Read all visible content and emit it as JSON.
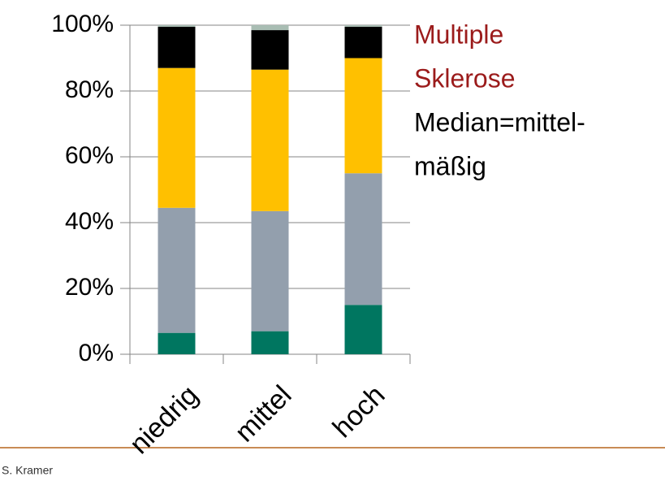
{
  "chart_data": {
    "type": "stacked_bar",
    "categories": [
      "niedrig",
      "mittel",
      "hoch"
    ],
    "series": [
      {
        "color": "#007660",
        "values": [
          6.5,
          7,
          15
        ]
      },
      {
        "color": "#939fad",
        "values": [
          38,
          36.5,
          40
        ]
      },
      {
        "color": "#ffc000",
        "values": [
          42.5,
          43,
          35
        ]
      },
      {
        "color": "#000000",
        "values": [
          12.5,
          12,
          9.5
        ]
      },
      {
        "color": "#a9bdb3",
        "values": [
          0.5,
          1.5,
          0.5
        ]
      }
    ],
    "ylim": [
      0,
      100
    ],
    "yticks": [
      {
        "value": 0,
        "label": "0%"
      },
      {
        "value": 20,
        "label": "20%"
      },
      {
        "value": 40,
        "label": "40%"
      },
      {
        "value": 60,
        "label": "60%"
      },
      {
        "value": 80,
        "label": "80%"
      },
      {
        "value": 100,
        "label": "100%"
      }
    ],
    "grid": true,
    "annotations": [
      {
        "text": "Multiple",
        "color": "#9b1b1b"
      },
      {
        "text": "Sklerose",
        "color": "#9b1b1b"
      },
      {
        "text": "Median=mittel-",
        "color": "#000000"
      },
      {
        "text": "mäßig",
        "color": "#000000"
      }
    ]
  },
  "footer": {
    "author": "S. Kramer"
  }
}
